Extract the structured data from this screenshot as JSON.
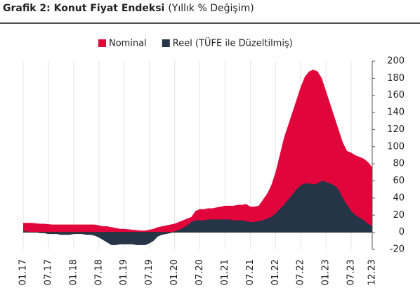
{
  "chart_data": {
    "type": "area",
    "title": "Grafik 2: Konut Fiyat Endeksi",
    "subtitle": "(Yıllık % Değişim)",
    "categories": [
      "01.17",
      null,
      null,
      null,
      null,
      null,
      "07.17",
      null,
      null,
      null,
      null,
      null,
      "01.18",
      null,
      null,
      null,
      null,
      null,
      "07.18",
      null,
      null,
      null,
      null,
      null,
      "01.19",
      null,
      null,
      null,
      null,
      null,
      "07.19",
      null,
      null,
      null,
      null,
      null,
      "01.20",
      null,
      null,
      null,
      null,
      null,
      "07.20",
      null,
      null,
      null,
      null,
      null,
      "01.21",
      null,
      null,
      null,
      null,
      null,
      "07.21",
      null,
      null,
      null,
      null,
      null,
      "01.22",
      null,
      null,
      null,
      null,
      null,
      "07.22",
      null,
      null,
      null,
      null,
      null,
      "01.23",
      null,
      null,
      null,
      null,
      null,
      "07.23",
      null,
      null,
      null,
      null,
      "12.23"
    ],
    "series": [
      {
        "name": "Nominal",
        "color": "#e0063c",
        "values": [
          11,
          11,
          11,
          10.5,
          10,
          10,
          9.5,
          9,
          9,
          9,
          9,
          9,
          9,
          9,
          9,
          9,
          9,
          9,
          8,
          7,
          7,
          6,
          5,
          4,
          4,
          3.5,
          3,
          2.5,
          2,
          2,
          3,
          4,
          6,
          7,
          8,
          9,
          10,
          12,
          14,
          16,
          18,
          25,
          27,
          27,
          28,
          28,
          29,
          30,
          31,
          31,
          31,
          32,
          32,
          33,
          30,
          30,
          31,
          38,
          45,
          55,
          70,
          90,
          110,
          125,
          140,
          155,
          170,
          182,
          188,
          190,
          188,
          180,
          165,
          150,
          135,
          120,
          105,
          95,
          93,
          90,
          88,
          86,
          82,
          76
        ]
      },
      {
        "name": "Reel (TÜFE ile Düzeltilmiş)",
        "color": "#253447",
        "values": [
          1,
          1,
          0,
          0,
          -1,
          -1,
          -2,
          -2,
          -2,
          -3,
          -3,
          -3,
          -2,
          -2,
          -2,
          -3,
          -3,
          -4,
          -6,
          -9,
          -12,
          -15,
          -15,
          -14,
          -14,
          -14,
          -14,
          -15,
          -15,
          -15,
          -13,
          -10,
          -5,
          -3,
          -2,
          -1,
          1,
          3,
          5,
          8,
          12,
          14,
          14,
          14,
          15,
          15,
          15,
          15,
          15,
          15,
          14,
          14,
          14,
          13,
          12,
          12,
          13,
          14,
          16,
          18,
          22,
          27,
          32,
          38,
          44,
          50,
          55,
          57,
          57,
          56,
          57,
          60,
          59,
          57,
          55,
          50,
          40,
          32,
          25,
          20,
          17,
          14,
          10,
          7
        ]
      }
    ],
    "ylim": [
      -20,
      200
    ],
    "yticks": [
      -20,
      0,
      20,
      40,
      60,
      80,
      100,
      120,
      140,
      160,
      180,
      200
    ],
    "grid": "x",
    "legend": "top"
  }
}
